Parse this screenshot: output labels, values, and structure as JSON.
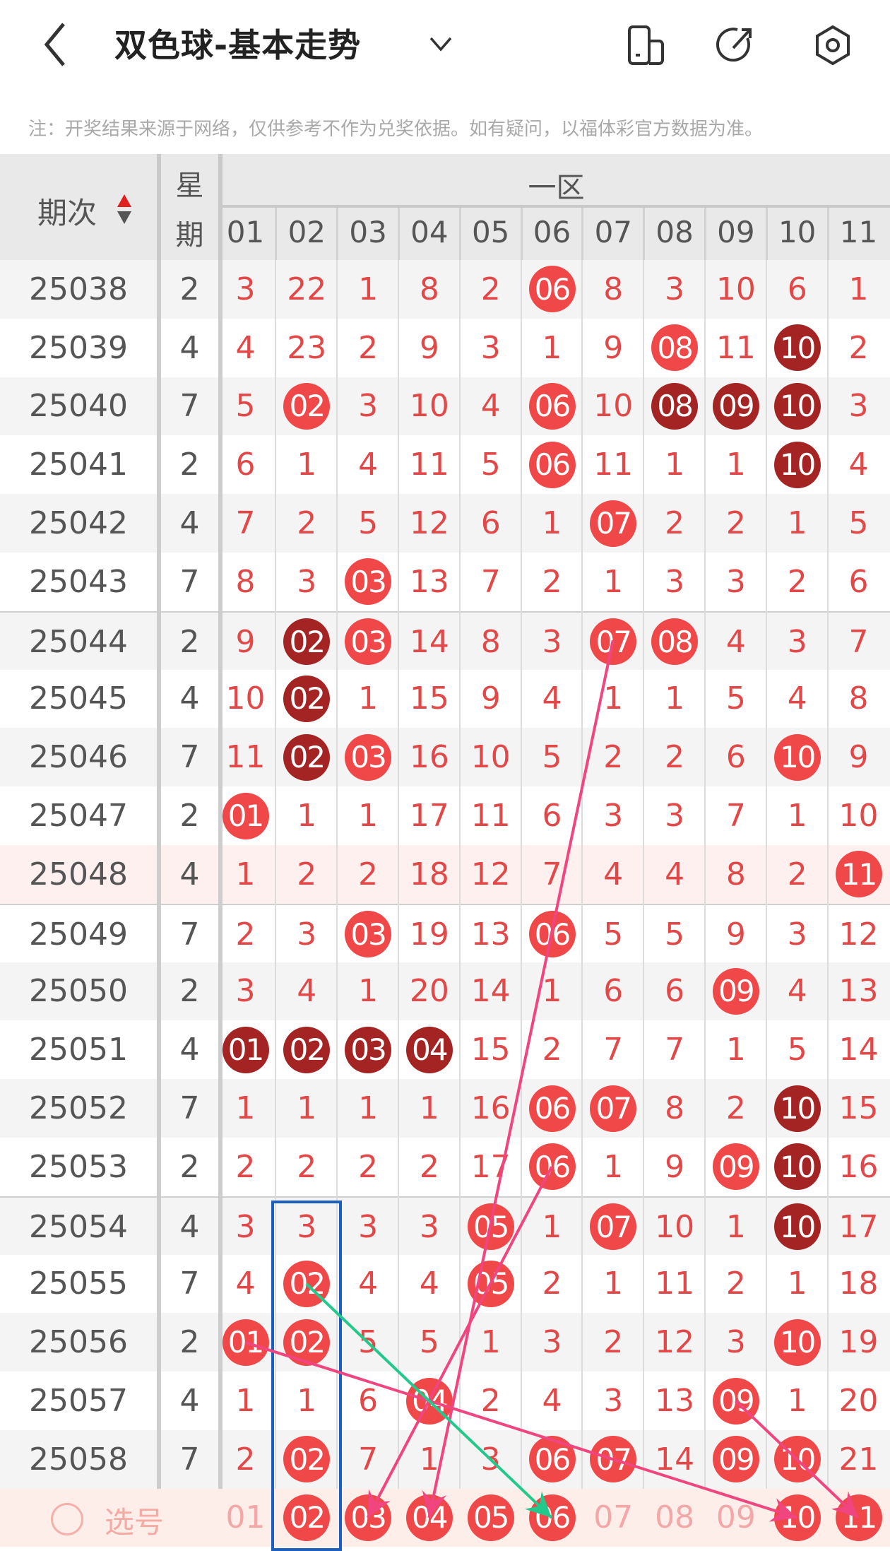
{
  "header": {
    "title": "双色球-基本走势",
    "icons": [
      "back-icon",
      "chevron-down-icon",
      "device-icon",
      "share-icon",
      "settings-icon"
    ]
  },
  "note": "注：开奖结果来源于网络，仅供参考不作为兑奖依据。如有疑问，以福体彩官方数据为准。",
  "table": {
    "issue_header": "期次",
    "weekday_header": [
      "星",
      "期"
    ],
    "zone_header": "一区",
    "columns": [
      "01",
      "02",
      "03",
      "04",
      "05",
      "06",
      "07",
      "08",
      "09",
      "10",
      "11"
    ],
    "colors": {
      "ball": "#f04848",
      "repeat_ball": "#a42424",
      "miss_text": "#e24848",
      "highlight_row": "#fff0f0",
      "select_row": "#fdeee9"
    },
    "rows": [
      {
        "issue": "25038",
        "weekday": "2",
        "cells": [
          "3",
          "22",
          "1",
          "8",
          "2",
          "06",
          "8",
          "3",
          "10",
          "6",
          "1"
        ],
        "dark": []
      },
      {
        "issue": "25039",
        "weekday": "4",
        "cells": [
          "4",
          "23",
          "2",
          "9",
          "3",
          "1",
          "9",
          "08",
          "11",
          "10",
          "2"
        ],
        "dark": [
          "10"
        ]
      },
      {
        "issue": "25040",
        "weekday": "7",
        "cells": [
          "5",
          "02",
          "3",
          "10",
          "4",
          "06",
          "10",
          "08",
          "09",
          "10",
          "3"
        ],
        "dark": [
          "08",
          "09",
          "10"
        ]
      },
      {
        "issue": "25041",
        "weekday": "2",
        "cells": [
          "6",
          "1",
          "4",
          "11",
          "5",
          "06",
          "11",
          "1",
          "1",
          "10",
          "4"
        ],
        "dark": [
          "10"
        ]
      },
      {
        "issue": "25042",
        "weekday": "4",
        "cells": [
          "7",
          "2",
          "5",
          "12",
          "6",
          "1",
          "07",
          "2",
          "2",
          "1",
          "5"
        ],
        "dark": []
      },
      {
        "issue": "25043",
        "weekday": "7",
        "cells": [
          "8",
          "3",
          "03",
          "13",
          "7",
          "2",
          "1",
          "3",
          "3",
          "2",
          "6"
        ],
        "dark": []
      },
      {
        "issue": "25044",
        "weekday": "2",
        "cells": [
          "9",
          "02",
          "03",
          "14",
          "8",
          "3",
          "07",
          "08",
          "4",
          "3",
          "7"
        ],
        "dark": [
          "02"
        ]
      },
      {
        "issue": "25045",
        "weekday": "4",
        "cells": [
          "10",
          "02",
          "1",
          "15",
          "9",
          "4",
          "1",
          "1",
          "5",
          "4",
          "8"
        ],
        "dark": [
          "02"
        ]
      },
      {
        "issue": "25046",
        "weekday": "7",
        "cells": [
          "11",
          "02",
          "03",
          "16",
          "10",
          "5",
          "2",
          "2",
          "6",
          "10",
          "9"
        ],
        "dark": [
          "02"
        ]
      },
      {
        "issue": "25047",
        "weekday": "2",
        "cells": [
          "01",
          "1",
          "1",
          "17",
          "11",
          "6",
          "3",
          "3",
          "7",
          "1",
          "10"
        ],
        "dark": []
      },
      {
        "issue": "25048",
        "weekday": "4",
        "cells": [
          "1",
          "2",
          "2",
          "18",
          "12",
          "7",
          "4",
          "4",
          "8",
          "2",
          "11"
        ],
        "dark": [],
        "highlight": true
      },
      {
        "issue": "25049",
        "weekday": "7",
        "cells": [
          "2",
          "3",
          "03",
          "19",
          "13",
          "06",
          "5",
          "5",
          "9",
          "3",
          "12"
        ],
        "dark": []
      },
      {
        "issue": "25050",
        "weekday": "2",
        "cells": [
          "3",
          "4",
          "1",
          "20",
          "14",
          "1",
          "6",
          "6",
          "09",
          "4",
          "13"
        ],
        "dark": []
      },
      {
        "issue": "25051",
        "weekday": "4",
        "cells": [
          "01",
          "02",
          "03",
          "04",
          "15",
          "2",
          "7",
          "7",
          "1",
          "5",
          "14"
        ],
        "dark": [
          "01",
          "02",
          "03",
          "04"
        ]
      },
      {
        "issue": "25052",
        "weekday": "7",
        "cells": [
          "1",
          "1",
          "1",
          "1",
          "16",
          "06",
          "07",
          "8",
          "2",
          "10",
          "15"
        ],
        "dark": [
          "10"
        ]
      },
      {
        "issue": "25053",
        "weekday": "2",
        "cells": [
          "2",
          "2",
          "2",
          "2",
          "17",
          "06",
          "1",
          "9",
          "09",
          "10",
          "16"
        ],
        "dark": [
          "10"
        ]
      },
      {
        "issue": "25054",
        "weekday": "4",
        "cells": [
          "3",
          "3",
          "3",
          "3",
          "05",
          "1",
          "07",
          "10",
          "1",
          "10",
          "17"
        ],
        "dark": [
          "10"
        ]
      },
      {
        "issue": "25055",
        "weekday": "7",
        "cells": [
          "4",
          "02",
          "4",
          "4",
          "05",
          "2",
          "1",
          "11",
          "2",
          "1",
          "18"
        ],
        "dark": []
      },
      {
        "issue": "25056",
        "weekday": "2",
        "cells": [
          "01",
          "02",
          "5",
          "5",
          "1",
          "3",
          "2",
          "12",
          "3",
          "10",
          "19"
        ],
        "dark": []
      },
      {
        "issue": "25057",
        "weekday": "4",
        "cells": [
          "1",
          "1",
          "6",
          "04",
          "2",
          "4",
          "3",
          "13",
          "09",
          "1",
          "20"
        ],
        "dark": []
      },
      {
        "issue": "25058",
        "weekday": "7",
        "cells": [
          "2",
          "02",
          "7",
          "1",
          "3",
          "06",
          "07",
          "14",
          "09",
          "10",
          "21"
        ],
        "dark": []
      }
    ],
    "select_row": {
      "label": "选号",
      "numbers": [
        "01",
        "02",
        "03",
        "04",
        "05",
        "06",
        "07",
        "08",
        "09",
        "10",
        "11"
      ],
      "selected": [
        "02",
        "03",
        "04",
        "05",
        "06",
        "10",
        "11"
      ]
    },
    "highlighted_column": "02",
    "arrows": [
      {
        "from_issue": "25044",
        "from_col": "07",
        "to_col": "04",
        "color": "#f0457f"
      },
      {
        "from_issue": "25053",
        "from_col": "06",
        "to_col": "03",
        "color": "#f0457f"
      },
      {
        "from_issue": "25056",
        "from_col": "01",
        "to_col": "10",
        "color": "#f0457f"
      },
      {
        "from_issue": "25057",
        "from_col": "09",
        "to_col": "11",
        "color": "#f0457f"
      },
      {
        "from_issue": "25055",
        "from_col": "02",
        "to_col": "06",
        "color": "#22c98a"
      }
    ]
  }
}
